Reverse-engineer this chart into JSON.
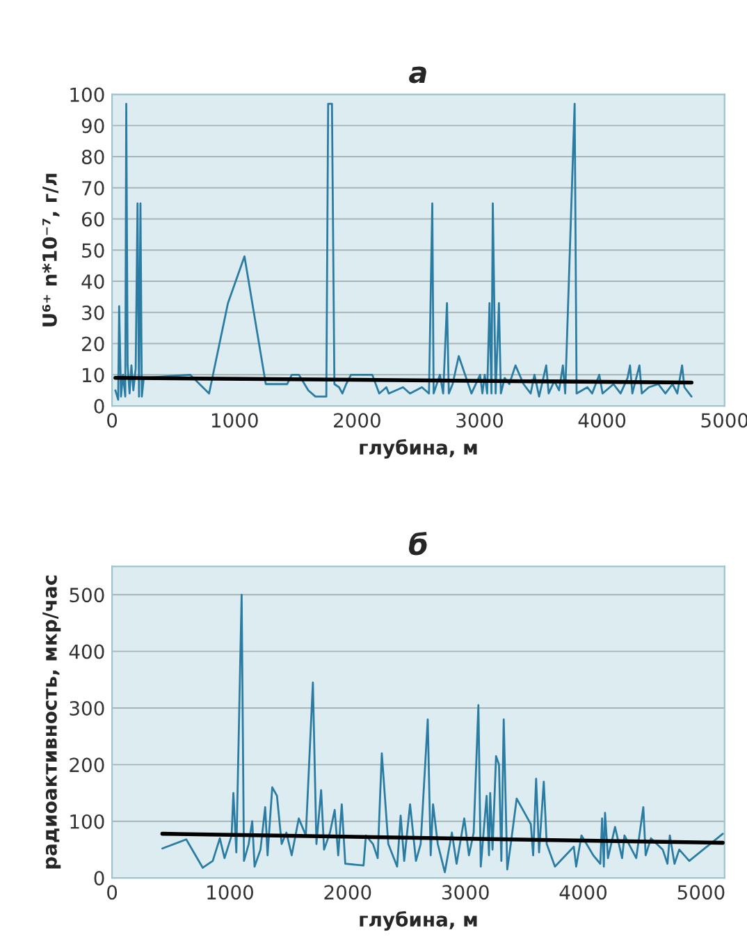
{
  "chart_data": [
    {
      "type": "line",
      "title": "а",
      "xlabel": "глубина, м",
      "ylabel": "U⁶⁺ n*10⁻⁷, г/л",
      "xlim": [
        0,
        5000
      ],
      "xticks": [
        0,
        1000,
        2000,
        3000,
        4000,
        5000
      ],
      "ylim": [
        0,
        100
      ],
      "yticks": [
        0,
        10,
        20,
        30,
        40,
        50,
        60,
        70,
        80,
        90,
        100
      ],
      "grid": "y",
      "series": [
        {
          "color": "#2b7ca3",
          "x": [
            27,
            50,
            58,
            73,
            89,
            108,
            116,
            127,
            143,
            158,
            174,
            193,
            208,
            220,
            232,
            243,
            259,
            637,
            792,
            946,
            1081,
            1255,
            1429,
            1467,
            1525,
            1602,
            1660,
            1749,
            1764,
            1795,
            1815,
            1853,
            1880,
            1911,
            1950,
            2124,
            2181,
            2239,
            2259,
            2375,
            2432,
            2529,
            2587,
            2614,
            2625,
            2676,
            2703,
            2734,
            2749,
            2780,
            2830,
            2934,
            3004,
            3023,
            3042,
            3062,
            3081,
            3097,
            3108,
            3120,
            3131,
            3158,
            3174,
            3205,
            3243,
            3293,
            3359,
            3417,
            3448,
            3486,
            3544,
            3564,
            3610,
            3649,
            3680,
            3699,
            3776,
            3792,
            3880,
            3919,
            3977,
            4004,
            4093,
            4151,
            4208,
            4228,
            4247,
            4305,
            4324,
            4382,
            4459,
            4517,
            4575,
            4614,
            4653,
            4672,
            4730
          ],
          "values": [
            5,
            2,
            32,
            3,
            10,
            3,
            97,
            13,
            4,
            13,
            5,
            12,
            65,
            3,
            65,
            3,
            9,
            10,
            4,
            33,
            48,
            7,
            7,
            10,
            10,
            5,
            3,
            3,
            97,
            97,
            7,
            6,
            4,
            7,
            10,
            10,
            4,
            6,
            4,
            6,
            4,
            6,
            4,
            65,
            4,
            10,
            4,
            33,
            4,
            7,
            16,
            4,
            10,
            4,
            10,
            4,
            33,
            4,
            65,
            33,
            4,
            33,
            4,
            9,
            7,
            13,
            7,
            4,
            10,
            3,
            13,
            4,
            8,
            5,
            13,
            4,
            97,
            4,
            6,
            4,
            10,
            4,
            7,
            4,
            9,
            13,
            4,
            13,
            4,
            6,
            7,
            4,
            7,
            4,
            13,
            6,
            3
          ]
        },
        {
          "color": "#000000",
          "x": [
            27,
            4730
          ],
          "values": [
            9,
            7.5
          ]
        }
      ]
    },
    {
      "type": "line",
      "title": "б",
      "xlabel": "глубина, м",
      "ylabel": "радиоактивность, мкр/час",
      "xlim": [
        0,
        5200
      ],
      "xticks": [
        0,
        1000,
        2000,
        3000,
        4000,
        5000
      ],
      "ylim": [
        0,
        550
      ],
      "yticks": [
        0,
        100,
        200,
        300,
        400,
        500
      ],
      "grid": "y",
      "series": [
        {
          "color": "#2b7ca3",
          "x": [
            427,
            630,
            770,
            855,
            915,
            955,
            1015,
            1030,
            1055,
            1100,
            1120,
            1160,
            1190,
            1210,
            1260,
            1300,
            1320,
            1360,
            1400,
            1440,
            1480,
            1525,
            1585,
            1645,
            1705,
            1735,
            1775,
            1800,
            1850,
            1890,
            1920,
            1950,
            1980,
            2135,
            2155,
            2215,
            2255,
            2290,
            2345,
            2420,
            2450,
            2480,
            2530,
            2580,
            2620,
            2680,
            2705,
            2725,
            2765,
            2825,
            2885,
            2925,
            2990,
            3030,
            3070,
            3110,
            3130,
            3180,
            3200,
            3210,
            3230,
            3260,
            3285,
            3305,
            3325,
            3355,
            3385,
            3435,
            3555,
            3575,
            3600,
            3625,
            3665,
            3690,
            3760,
            3920,
            3940,
            3985,
            4085,
            4145,
            4160,
            4175,
            4185,
            4210,
            4270,
            4330,
            4350,
            4450,
            4510,
            4530,
            4575,
            4675,
            4715,
            4735,
            4775,
            4815,
            4900,
            5185
          ],
          "values": [
            52,
            68,
            18,
            30,
            70,
            35,
            75,
            150,
            45,
            500,
            30,
            60,
            100,
            20,
            50,
            125,
            40,
            160,
            145,
            60,
            80,
            40,
            105,
            75,
            345,
            60,
            155,
            50,
            80,
            120,
            40,
            130,
            25,
            22,
            75,
            60,
            35,
            220,
            60,
            20,
            110,
            30,
            130,
            30,
            60,
            280,
            40,
            130,
            60,
            10,
            80,
            25,
            105,
            40,
            80,
            305,
            20,
            145,
            40,
            150,
            50,
            215,
            200,
            30,
            280,
            15,
            60,
            140,
            95,
            40,
            175,
            45,
            170,
            60,
            20,
            55,
            20,
            75,
            40,
            25,
            105,
            20,
            115,
            35,
            90,
            35,
            75,
            35,
            125,
            40,
            70,
            50,
            25,
            75,
            25,
            50,
            30,
            78
          ]
        },
        {
          "color": "#000000",
          "x": [
            427,
            5185
          ],
          "values": [
            78,
            62
          ]
        }
      ]
    }
  ]
}
